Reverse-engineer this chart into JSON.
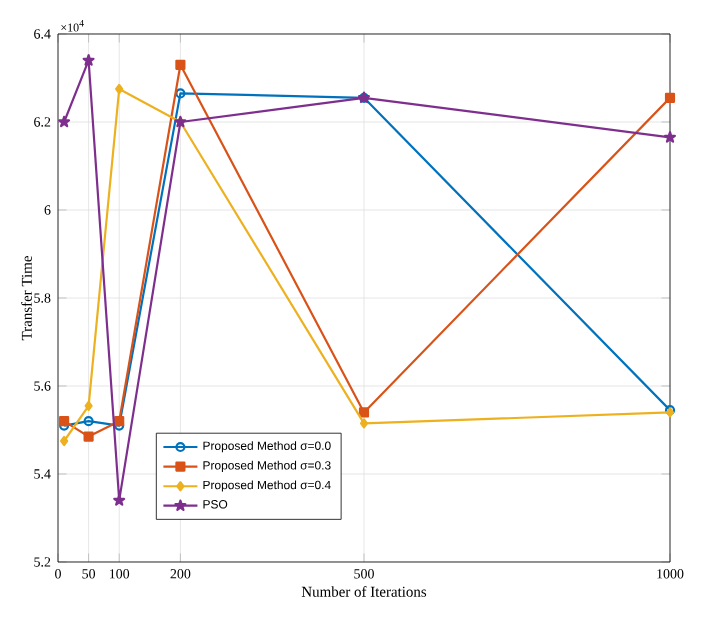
{
  "chart_data": {
    "type": "line",
    "xlabel": "Number of Iterations",
    "ylabel": "Transfer Time",
    "annotations": [
      "×10$^{4}$"
    ],
    "x": [
      10,
      50,
      100,
      200,
      500,
      1000
    ],
    "xlim": [
      0,
      1000
    ],
    "xticks": [
      0,
      50,
      100,
      200,
      500,
      1000
    ],
    "ylim": [
      5.2,
      6.4
    ],
    "yticks": [
      5.2,
      5.4,
      5.6,
      5.8,
      6,
      6.2,
      6.4
    ],
    "grid": true,
    "legend": "bottom left",
    "line_style": "solid",
    "series": [
      {
        "name": "Proposed Method σ=0.0",
        "color": "#0072bd",
        "marker": "circle",
        "values": [
          5.51,
          5.52,
          5.51,
          6.265,
          6.255,
          5.545
        ]
      },
      {
        "name": "Proposed Method σ=0.3",
        "color": "#d95319",
        "marker": "square",
        "values": [
          5.52,
          5.485,
          5.52,
          6.33,
          5.54,
          6.255
        ]
      },
      {
        "name": "Proposed Method σ=0.4",
        "color": "#edb120",
        "marker": "diamond",
        "values": [
          5.475,
          5.555,
          6.275,
          6.2,
          5.515,
          5.54
        ]
      },
      {
        "name": "PSO",
        "color": "#7e2f8e",
        "marker": "star",
        "values": [
          6.2,
          6.34,
          5.34,
          6.2,
          6.255,
          6.165
        ]
      }
    ]
  }
}
